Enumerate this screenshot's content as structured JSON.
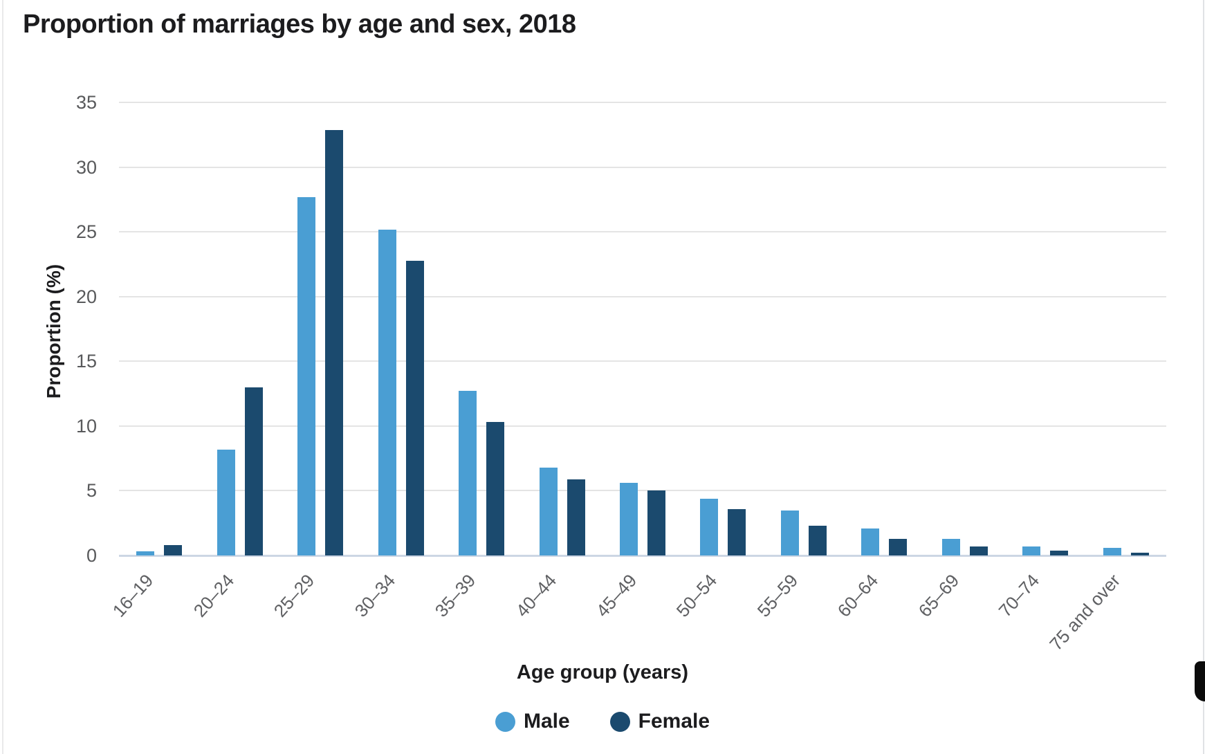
{
  "chart_data": {
    "type": "bar",
    "title": "Proportion of marriages by age and sex, 2018",
    "xlabel": "Age group (years)",
    "ylabel": "Proportion (%)",
    "categories": [
      "16–19",
      "20–24",
      "25–29",
      "30–34",
      "35–39",
      "40–44",
      "45–49",
      "50–54",
      "55–59",
      "60–64",
      "65–69",
      "70–74",
      "75 and over"
    ],
    "series": [
      {
        "name": "Male",
        "color": "#4A9ED3",
        "values": [
          0.3,
          8.2,
          27.7,
          25.2,
          12.7,
          6.8,
          5.6,
          4.4,
          3.5,
          2.1,
          1.3,
          0.7,
          0.6
        ]
      },
      {
        "name": "Female",
        "color": "#1B4A6E",
        "values": [
          0.8,
          13.0,
          32.9,
          22.8,
          10.3,
          5.9,
          5.0,
          3.6,
          2.3,
          1.3,
          0.7,
          0.4,
          0.2
        ]
      }
    ],
    "ylim": [
      0,
      35
    ],
    "yticks": [
      0,
      5,
      10,
      15,
      20,
      25,
      30,
      35
    ],
    "grid": true,
    "legend_position": "bottom"
  }
}
